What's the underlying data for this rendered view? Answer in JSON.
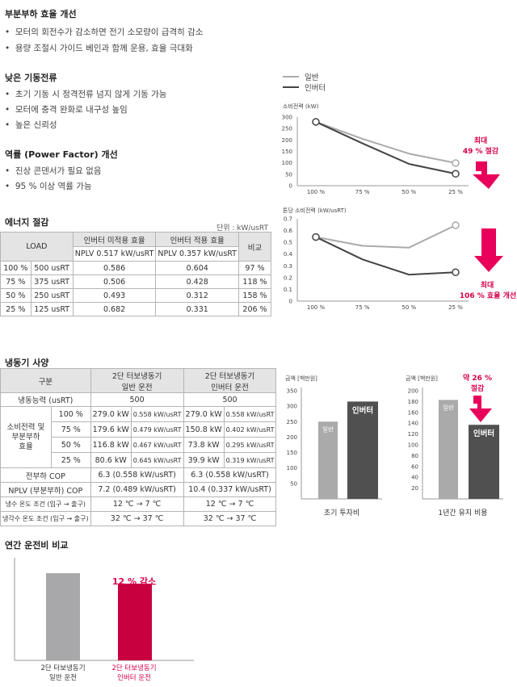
{
  "partial_load": {
    "heading": "부분부하 효율 개선",
    "bullets": [
      "모터의 회전수가 감소하면 전기 소모량이 급격히 감소",
      "용량 조절시 가이드 베인과 함께 운용, 효율 극대화"
    ]
  },
  "low_start": {
    "heading": "낮은 기동전류",
    "bullets": [
      "초기 기동 시 정격전류 넘지 않게 기동 가능",
      "모터에 충격 완화로 내구성 높임",
      "높은 신뢰성"
    ]
  },
  "power_factor": {
    "heading": "역률 (Power Factor) 개선",
    "bullets": [
      "진상 콘덴서가 필요 없음",
      "95 % 이상 역률 가능"
    ]
  },
  "energy": {
    "heading": "에너지 절감",
    "unit": "단위 : kW/usRT",
    "head": {
      "load": "LOAD",
      "col1": "인버터 미적용 효율",
      "col2": "인버터 적용 효율",
      "ratio": "비교",
      "sub1": "NPLV 0.517 kW/usRT",
      "sub2": "NPLV 0.357 kW/usRT"
    },
    "rows": [
      {
        "pct": "100 %",
        "rt": "500 usRT",
        "a": "0.586",
        "b": "0.604",
        "c": "97 %"
      },
      {
        "pct": "75 %",
        "rt": "375 usRT",
        "a": "0.506",
        "b": "0.428",
        "c": "118 %"
      },
      {
        "pct": "50 %",
        "rt": "250 usRT",
        "a": "0.493",
        "b": "0.312",
        "c": "158 %"
      },
      {
        "pct": "25 %",
        "rt": "125 usRT",
        "a": "0.682",
        "b": "0.331",
        "c": "206 %"
      }
    ]
  },
  "legend": {
    "general": "일반",
    "inverter": "인버터"
  },
  "annot": {
    "max1": "최대",
    "save1": "49 % 절감",
    "max2": "최대",
    "save2": "106 % 효율 개선",
    "approx": "약 26 %",
    "save3": "절감"
  },
  "chiller": {
    "heading": "냉동기 사양",
    "head": {
      "div": "구분",
      "c1a": "2단 터보냉동기",
      "c1b": "일반 운전",
      "c2a": "2단 터보냉동기",
      "c2b": "인버터 운전"
    },
    "capacity": {
      "label": "냉동능력 (usRT)",
      "a": "500",
      "b": "500"
    },
    "power_label": [
      "소비전력 및",
      "부분부하",
      "효율"
    ],
    "power_rows": [
      {
        "pct": "100 %",
        "a1": "279.0 kW",
        "a2": "0.558 kW/usRT",
        "b1": "279.0 kW",
        "b2": "0.558 kW/usRT"
      },
      {
        "pct": "75 %",
        "a1": "179.6 kW",
        "a2": "0.479 kW/usRT",
        "b1": "150.8 kW",
        "b2": "0.402 kW/usRT"
      },
      {
        "pct": "50 %",
        "a1": "116.8 kW",
        "a2": "0.467 kW/usRT",
        "b1": "73.8 kW",
        "b2": "0.295 kW/usRT"
      },
      {
        "pct": "25 %",
        "a1": "80.6 kW",
        "a2": "0.645 kW/usRT",
        "b1": "39.9 kW",
        "b2": "0.319 kW/usRT"
      }
    ],
    "cop": {
      "label": "전부하 COP",
      "a": "6.3 (0.558 kW/usRT)",
      "b": "6.3 (0.558 kW/usRT)"
    },
    "nplv": {
      "label": "NPLV (부분부하) COP",
      "a": "7.2 (0.489 kW/usRT)",
      "b": "10.4 (0.337 kW/usRT)"
    },
    "chw": {
      "label": "냉수 온도 조건 (입구 → 출구)",
      "a": "12 ℃ → 7 ℃",
      "b": "12 ℃ → 7 ℃"
    },
    "cw": {
      "label": "냉각수 온도 조건 (입구 → 출구)",
      "a": "32 ℃ → 37 ℃",
      "b": "32 ℃ → 37 ℃"
    }
  },
  "annual": {
    "heading": "연간 운전비 비교",
    "reduction": "12 % 감소",
    "label_a1": "2단 터보냉동기",
    "label_a2": "일반 운전",
    "label_b1": "2단 터보냉동기",
    "label_b2": "인버터 운전"
  },
  "chart_data": [
    {
      "type": "line",
      "ylabel": "소비전력 (kW)",
      "categories": [
        "100 %",
        "75 %",
        "50 %",
        "25 %"
      ],
      "ylim": [
        0,
        300
      ],
      "yticks": [
        0,
        50,
        100,
        150,
        200,
        250,
        300
      ],
      "series": [
        {
          "name": "일반",
          "values": [
            279,
            205,
            140,
            99
          ],
          "color": "#aaaaaa"
        },
        {
          "name": "인버터",
          "values": [
            279,
            185,
            95,
            52
          ],
          "color": "#444444"
        }
      ]
    },
    {
      "type": "line",
      "ylabel": "톤당 소비전력 (kW/usRT)",
      "categories": [
        "100 %",
        "75 %",
        "50 %",
        "25 %"
      ],
      "ylim": [
        0,
        0.7
      ],
      "yticks": [
        "0",
        "0.1",
        "0.2",
        "0.3",
        "0.4",
        "0.5",
        "0.6",
        "0.7"
      ],
      "series": [
        {
          "name": "일반",
          "values": [
            0.545,
            0.47,
            0.455,
            0.645
          ],
          "color": "#aaaaaa"
        },
        {
          "name": "인버터",
          "values": [
            0.545,
            0.355,
            0.225,
            0.245
          ],
          "color": "#444444"
        }
      ]
    },
    {
      "type": "bar",
      "ylabel": "금액 [백만원]",
      "xlabel": "초기 투자비",
      "categories": [
        "일반",
        "인버터"
      ],
      "values": [
        250,
        315
      ],
      "ylim": [
        0,
        350
      ],
      "yticks": [
        50,
        100,
        150,
        200,
        250,
        300,
        350
      ],
      "colors": [
        "#aaaaaa",
        "#505050"
      ]
    },
    {
      "type": "bar",
      "ylabel": "금액 [백만원]",
      "xlabel": "1년간 유지 비용",
      "categories": [
        "일반",
        "인버터"
      ],
      "values": [
        183,
        137
      ],
      "ylim": [
        0,
        200
      ],
      "yticks": [
        20,
        40,
        60,
        80,
        100,
        120,
        140,
        160,
        180,
        200
      ],
      "colors": [
        "#aaaaaa",
        "#505050"
      ]
    },
    {
      "type": "bar",
      "categories": [
        "2단 터보냉동기 일반 운전",
        "2단 터보냉동기 인버터 운전"
      ],
      "values": [
        100,
        88
      ],
      "colors": [
        "#a8a8ab",
        "#c8003f"
      ]
    }
  ]
}
